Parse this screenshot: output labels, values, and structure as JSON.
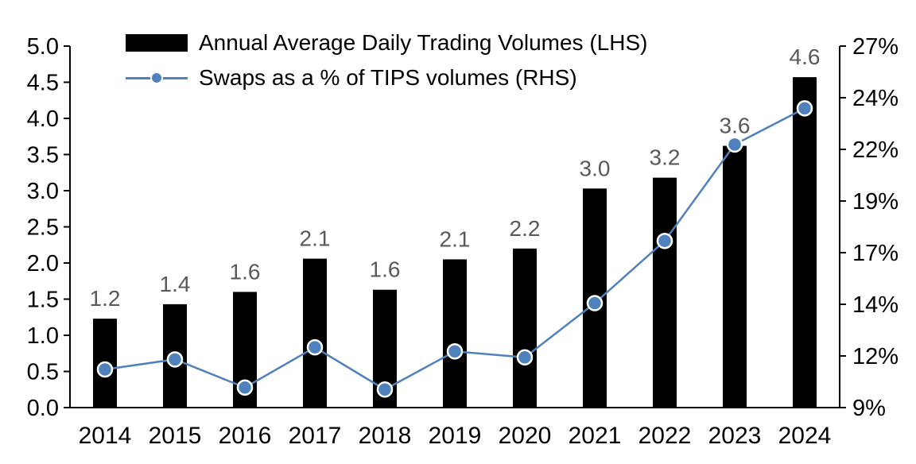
{
  "chart_data": {
    "type": "bar+line",
    "title": "",
    "categories": [
      "2014",
      "2015",
      "2016",
      "2017",
      "2018",
      "2019",
      "2020",
      "2021",
      "2022",
      "2023",
      "2024"
    ],
    "legend": [
      {
        "label": "Annual Average Daily Trading Volumes (LHS)",
        "marker": "black-bar-swatch"
      },
      {
        "label": "Swaps as a % of TIPS volumes (RHS)",
        "marker": "blue-line-with-dot"
      }
    ],
    "series": [
      {
        "name": "Annual Average Daily Trading Volumes (LHS)",
        "type": "bar",
        "axis": "left",
        "color": "#000000",
        "values": [
          1.23,
          1.43,
          1.6,
          2.06,
          1.63,
          2.05,
          2.2,
          3.03,
          3.18,
          3.62,
          4.57
        ],
        "labels": [
          "1.2",
          "1.4",
          "1.6",
          "2.1",
          "1.6",
          "2.1",
          "2.2",
          "3.0",
          "3.2",
          "3.6",
          "4.6"
        ],
        "label_color": "#595959"
      },
      {
        "name": "Swaps as a % of TIPS volumes (RHS)",
        "type": "line",
        "axis": "right",
        "color": "#4f81bd",
        "marker_fill": "#4f81bd",
        "marker_stroke": "#ffffff",
        "values": [
          10.9,
          11.4,
          10.0,
          12.0,
          9.9,
          11.8,
          11.5,
          14.2,
          17.3,
          22.1,
          23.9
        ]
      }
    ],
    "axes": {
      "left": {
        "min": 0,
        "max": 5,
        "tick_labels": [
          "0.0",
          "0.5",
          "1.0",
          "1.5",
          "2.0",
          "2.5",
          "3.0",
          "3.5",
          "4.0",
          "4.5",
          "5.0"
        ]
      },
      "right": {
        "min": 9,
        "max": 27,
        "tick_labels": [
          "9%",
          "12%",
          "14%",
          "17%",
          "19%",
          "22%",
          "24%",
          "27%"
        ]
      },
      "x": {
        "tick_labels": [
          "2014",
          "2015",
          "2016",
          "2017",
          "2018",
          "2019",
          "2020",
          "2021",
          "2022",
          "2023",
          "2024"
        ]
      }
    },
    "grid": false,
    "legend_position": "top-left-inside"
  }
}
